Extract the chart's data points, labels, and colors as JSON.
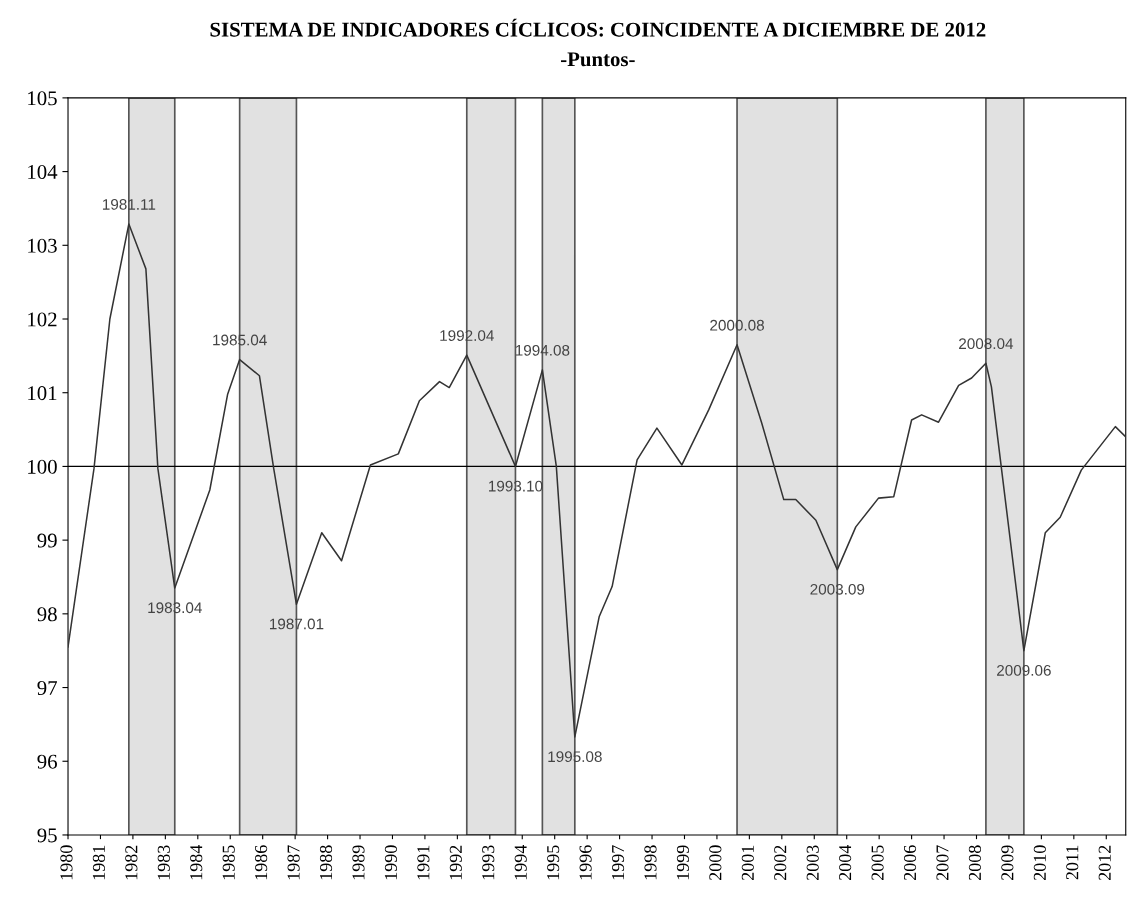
{
  "chart_data": {
    "type": "line",
    "title": "SISTEMA DE INDICADORES CÍCLICOS: COINCIDENTE A DICIEMBRE DE 2012",
    "subtitle": "-Puntos-",
    "x": [
      1980.0,
      1980.8,
      1981.29,
      1981.875,
      1982.4,
      1982.77,
      1983.29,
      1984.37,
      1984.92,
      1985.29,
      1985.9,
      1986.34,
      1987.04,
      1987.82,
      1988.43,
      1989.32,
      1990.18,
      1990.83,
      1991.45,
      1991.75,
      1992.29,
      1993.79,
      1994.62,
      1995.05,
      1995.62,
      1996.37,
      1996.77,
      1997.54,
      1998.15,
      1998.92,
      1999.75,
      2000.62,
      2001.38,
      2002.06,
      2002.43,
      2003.05,
      2003.71,
      2004.28,
      2004.98,
      2005.45,
      2006.0,
      2006.31,
      2006.83,
      2007.45,
      2007.85,
      2008.29,
      2008.46,
      2009.46,
      2010.12,
      2010.58,
      2011.23,
      2012.28,
      2012.6
    ],
    "series": [
      {
        "color": "#333333",
        "values": [
          97.55,
          99.97,
          102.0,
          103.29,
          102.68,
          99.97,
          98.35,
          99.68,
          100.98,
          101.45,
          101.23,
          99.97,
          98.13,
          99.1,
          98.72,
          100.02,
          100.17,
          100.89,
          101.15,
          101.07,
          101.51,
          100.0,
          101.31,
          100.0,
          96.33,
          97.96,
          98.37,
          100.09,
          100.52,
          100.02,
          100.77,
          101.65,
          100.59,
          99.55,
          99.55,
          99.27,
          98.6,
          99.18,
          99.57,
          99.59,
          100.63,
          100.7,
          100.6,
          101.1,
          101.2,
          101.4,
          101.08,
          97.5,
          99.1,
          99.31,
          99.95,
          100.54,
          100.4
        ]
      }
    ],
    "xlim": [
      1980.0,
      2012.6
    ],
    "xticks": [
      1980,
      1981,
      1982,
      1983,
      1984,
      1985,
      1986,
      1987,
      1988,
      1989,
      1990,
      1991,
      1992,
      1993,
      1994,
      1995,
      1996,
      1997,
      1998,
      1999,
      2000,
      2001,
      2002,
      2003,
      2004,
      2005,
      2006,
      2007,
      2008,
      2009,
      2010,
      2011,
      2012
    ],
    "ylim": [
      95,
      105
    ],
    "yticks": [
      95,
      96,
      97,
      98,
      99,
      100,
      101,
      102,
      103,
      104,
      105
    ],
    "ref_lines": [
      {
        "axis": "y",
        "value": 100,
        "color": "#000000"
      }
    ],
    "bands": [
      {
        "axis": "x",
        "from": 1981.875,
        "to": 1983.29,
        "color": "#e1e1e1"
      },
      {
        "axis": "x",
        "from": 1985.29,
        "to": 1987.04,
        "color": "#e1e1e1"
      },
      {
        "axis": "x",
        "from": 1992.29,
        "to": 1993.79,
        "color": "#e1e1e1"
      },
      {
        "axis": "x",
        "from": 1994.62,
        "to": 1995.62,
        "color": "#e1e1e1"
      },
      {
        "axis": "x",
        "from": 2000.62,
        "to": 2003.71,
        "color": "#e1e1e1"
      },
      {
        "axis": "x",
        "from": 2008.29,
        "to": 2009.46,
        "color": "#e1e1e1"
      }
    ],
    "annotations": [
      {
        "text": "1981.11",
        "x": 1981.875,
        "y": 103.29
      },
      {
        "text": "1983.04",
        "x": 1983.29,
        "y": 98.35
      },
      {
        "text": "1985.04",
        "x": 1985.29,
        "y": 101.45
      },
      {
        "text": "1987.01",
        "x": 1987.04,
        "y": 98.13
      },
      {
        "text": "1992.04",
        "x": 1992.29,
        "y": 101.51
      },
      {
        "text": "1993.10",
        "x": 1993.79,
        "y": 100.0
      },
      {
        "text": "1994.08",
        "x": 1994.62,
        "y": 101.31
      },
      {
        "text": "1995.08",
        "x": 1995.62,
        "y": 96.33
      },
      {
        "text": "2000.08",
        "x": 2000.62,
        "y": 101.65
      },
      {
        "text": "2003.09",
        "x": 2003.71,
        "y": 98.6
      },
      {
        "text": "2008.04",
        "x": 2008.29,
        "y": 101.4
      },
      {
        "text": "2009.06",
        "x": 2009.46,
        "y": 97.5
      }
    ],
    "grid": false,
    "legend": false
  }
}
